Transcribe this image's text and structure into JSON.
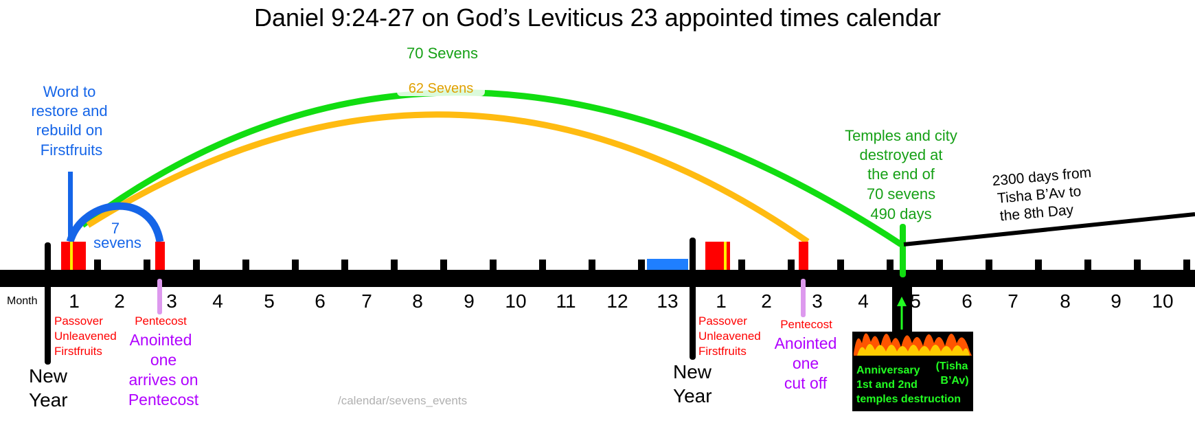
{
  "title": "Daniel 9:24-27 on God’s Leviticus 23 appointed times calendar",
  "month_label": "Month",
  "months": [
    "1",
    "2",
    "3",
    "4",
    "5",
    "6",
    "7",
    "8",
    "9",
    "10",
    "11",
    "12",
    "13",
    "1",
    "2",
    "3",
    "4",
    "5",
    "6",
    "7",
    "8",
    "9",
    "10"
  ],
  "arcs": {
    "seventy": "70 Sevens",
    "sixty_two": "62 Sevens",
    "seven_line1": "7",
    "seven_line2": "sevens"
  },
  "word_to_restore": [
    "Word to",
    "restore and",
    "rebuild on",
    "Firstfruits"
  ],
  "feasts_1": [
    "Passover",
    "Unleavened",
    "Firstfruits"
  ],
  "feasts_2": [
    "Passover",
    "Unleavened",
    "Firstfruits"
  ],
  "pentecost_1": "Pentecost",
  "pentecost_2": "Pentecost",
  "anointed_arrives": [
    "Anointed",
    "one",
    "arrives on",
    "Pentecost"
  ],
  "anointed_cut_off": [
    "Anointed",
    "one",
    "cut off"
  ],
  "new_year_1": [
    "New",
    "Year"
  ],
  "new_year_2": [
    "New",
    "Year"
  ],
  "temples_destroyed": [
    "Temples and city",
    "destroyed at",
    "the end of",
    "70 sevens",
    "490 days"
  ],
  "days_2300": [
    "2300 days from",
    "Tisha B’Av to",
    "the 8th Day"
  ],
  "anniversary": {
    "left": [
      "Anniversary",
      "1st and 2nd",
      "temples destruction"
    ],
    "right": [
      "(Tisha",
      "B’Av)"
    ]
  },
  "url_caption": "/calendar/sevens_events",
  "colors": {
    "timeline": "#000000",
    "feast": "#ff0000",
    "arc_70": "#11dd11",
    "arc_62": "#ffbb11",
    "arc_7": "#1565e8",
    "pentecost_marker": "#dd99ee",
    "month_13_bar": "#1f7fff",
    "destruction": "#11dd11"
  }
}
